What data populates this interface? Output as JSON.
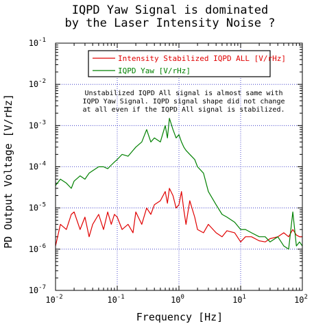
{
  "chart_data": {
    "type": "line",
    "title": [
      "IQPD Yaw Signal is dominated",
      "by the Laser Intensity Noise ?"
    ],
    "xlabel": "Frequency [Hz]",
    "ylabel": "PD Output Voltage [V/rHz]",
    "xscale": "log",
    "yscale": "log",
    "xlim": [
      0.01,
      100
    ],
    "ylim": [
      1e-07,
      0.1
    ],
    "grid": true,
    "legend_position": "top-center",
    "x_ticks": [
      {
        "base": "10",
        "exp": "-2"
      },
      {
        "base": "10",
        "exp": "-1"
      },
      {
        "base": "10",
        "exp": "0"
      },
      {
        "base": "10",
        "exp": "1"
      },
      {
        "base": "10",
        "exp": "2"
      }
    ],
    "y_ticks": [
      {
        "base": "10",
        "exp": "-7"
      },
      {
        "base": "10",
        "exp": "-6"
      },
      {
        "base": "10",
        "exp": "-5"
      },
      {
        "base": "10",
        "exp": "-4"
      },
      {
        "base": "10",
        "exp": "-3"
      },
      {
        "base": "10",
        "exp": "-2"
      },
      {
        "base": "10",
        "exp": "-1"
      }
    ],
    "annotation": [
      "Unstabilized IQPD All signal is almost same with",
      "IQPD Yaw Signal. IQPD signal shape did not change",
      "at all even if the IQPD All signal is stabilized."
    ],
    "series": [
      {
        "name": "Intensity Stabilized IQPD ALL [V/rHz]",
        "color": "#e00000",
        "x": [
          0.01,
          0.012,
          0.015,
          0.018,
          0.02,
          0.025,
          0.03,
          0.035,
          0.04,
          0.05,
          0.06,
          0.07,
          0.08,
          0.09,
          0.1,
          0.12,
          0.15,
          0.18,
          0.2,
          0.25,
          0.3,
          0.35,
          0.4,
          0.5,
          0.6,
          0.65,
          0.7,
          0.8,
          0.9,
          1.0,
          1.1,
          1.2,
          1.3,
          1.5,
          1.8,
          2.0,
          2.5,
          3,
          4,
          5,
          6,
          8,
          10,
          12,
          15,
          20,
          25,
          30,
          40,
          50,
          60,
          70,
          80,
          90,
          100
        ],
        "y": [
          1.2e-06,
          4e-06,
          3e-06,
          7e-06,
          8e-06,
          3e-06,
          6e-06,
          2e-06,
          4e-06,
          7e-06,
          3e-06,
          8e-06,
          4e-06,
          7e-06,
          6e-06,
          3e-06,
          4e-06,
          2.5e-06,
          8e-06,
          4e-06,
          1e-05,
          7e-06,
          1.2e-05,
          1.5e-05,
          2.5e-05,
          1.3e-05,
          3e-05,
          2e-05,
          1e-05,
          1.2e-05,
          2.5e-05,
          9e-06,
          4e-06,
          1.5e-05,
          6e-06,
          3e-06,
          2.5e-06,
          4e-06,
          2.5e-06,
          2e-06,
          2.8e-06,
          2.5e-06,
          1.5e-06,
          2e-06,
          2e-06,
          1.6e-06,
          1.5e-06,
          1.8e-06,
          2e-06,
          2.5e-06,
          2e-06,
          3e-06,
          2.2e-06,
          2e-06,
          2e-06
        ]
      },
      {
        "name": "IQPD Yaw [V/rHz]",
        "color": "#008000",
        "x": [
          0.01,
          0.012,
          0.015,
          0.018,
          0.02,
          0.025,
          0.03,
          0.035,
          0.04,
          0.05,
          0.06,
          0.07,
          0.08,
          0.09,
          0.1,
          0.12,
          0.15,
          0.18,
          0.2,
          0.25,
          0.3,
          0.35,
          0.4,
          0.5,
          0.6,
          0.65,
          0.7,
          0.8,
          0.9,
          1.0,
          1.1,
          1.2,
          1.3,
          1.5,
          1.8,
          2.0,
          2.5,
          3,
          4,
          5,
          6,
          8,
          10,
          12,
          15,
          20,
          25,
          30,
          40,
          50,
          60,
          70,
          80,
          90,
          100
        ],
        "y": [
          3.5e-05,
          5e-05,
          4e-05,
          3e-05,
          4.5e-05,
          6e-05,
          5e-05,
          7e-05,
          8e-05,
          0.0001,
          0.0001,
          9e-05,
          0.00011,
          0.00013,
          0.00015,
          0.0002,
          0.00018,
          0.00025,
          0.0003,
          0.0004,
          0.0008,
          0.0004,
          0.0005,
          0.0004,
          0.001,
          0.0005,
          0.0015,
          0.0008,
          0.0005,
          0.0006,
          0.0004,
          0.0003,
          0.00025,
          0.0002,
          0.00015,
          0.0001,
          7e-05,
          2.5e-05,
          1.2e-05,
          7e-06,
          6e-06,
          4.5e-06,
          3e-06,
          3e-06,
          2.5e-06,
          2e-06,
          2e-06,
          1.5e-06,
          2e-06,
          1.2e-06,
          1e-06,
          8e-06,
          1.2e-06,
          1.5e-06,
          1.2e-06
        ]
      }
    ]
  }
}
